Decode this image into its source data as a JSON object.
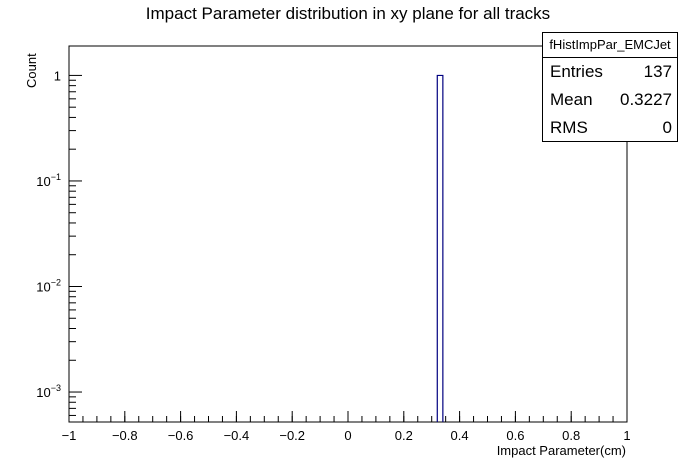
{
  "chart_data": {
    "type": "bar",
    "title": "Impact Parameter distribution in xy plane for all tracks",
    "xlabel": "Impact Parameter(cm)",
    "ylabel": "Count",
    "xlim": [
      -1,
      1
    ],
    "ylim": [
      0.00052,
      1.9
    ],
    "yscale": "log",
    "grid": false,
    "x_ticks": [
      "−1",
      "−0.8",
      "−0.6",
      "−0.4",
      "−0.2",
      "0",
      "0.2",
      "0.4",
      "0.6",
      "0.8",
      "1"
    ],
    "y_ticks": [
      {
        "base": "10",
        "exp": "−3",
        "value": 0.001
      },
      {
        "base": "10",
        "exp": "−2",
        "value": 0.01
      },
      {
        "base": "10",
        "exp": "−1",
        "value": 0.1
      },
      {
        "base": "1",
        "exp": "",
        "value": 1
      }
    ],
    "bins": [
      {
        "x_low": 0.32,
        "x_high": 0.34,
        "value": 1
      }
    ],
    "bar_color": "#000080",
    "stats_box": {
      "name": "fHistImpPar_EMCJet",
      "rows": [
        {
          "label": "Entries",
          "value": "137"
        },
        {
          "label": "Mean",
          "value": "0.3227"
        },
        {
          "label": "RMS",
          "value": "0"
        }
      ]
    }
  }
}
